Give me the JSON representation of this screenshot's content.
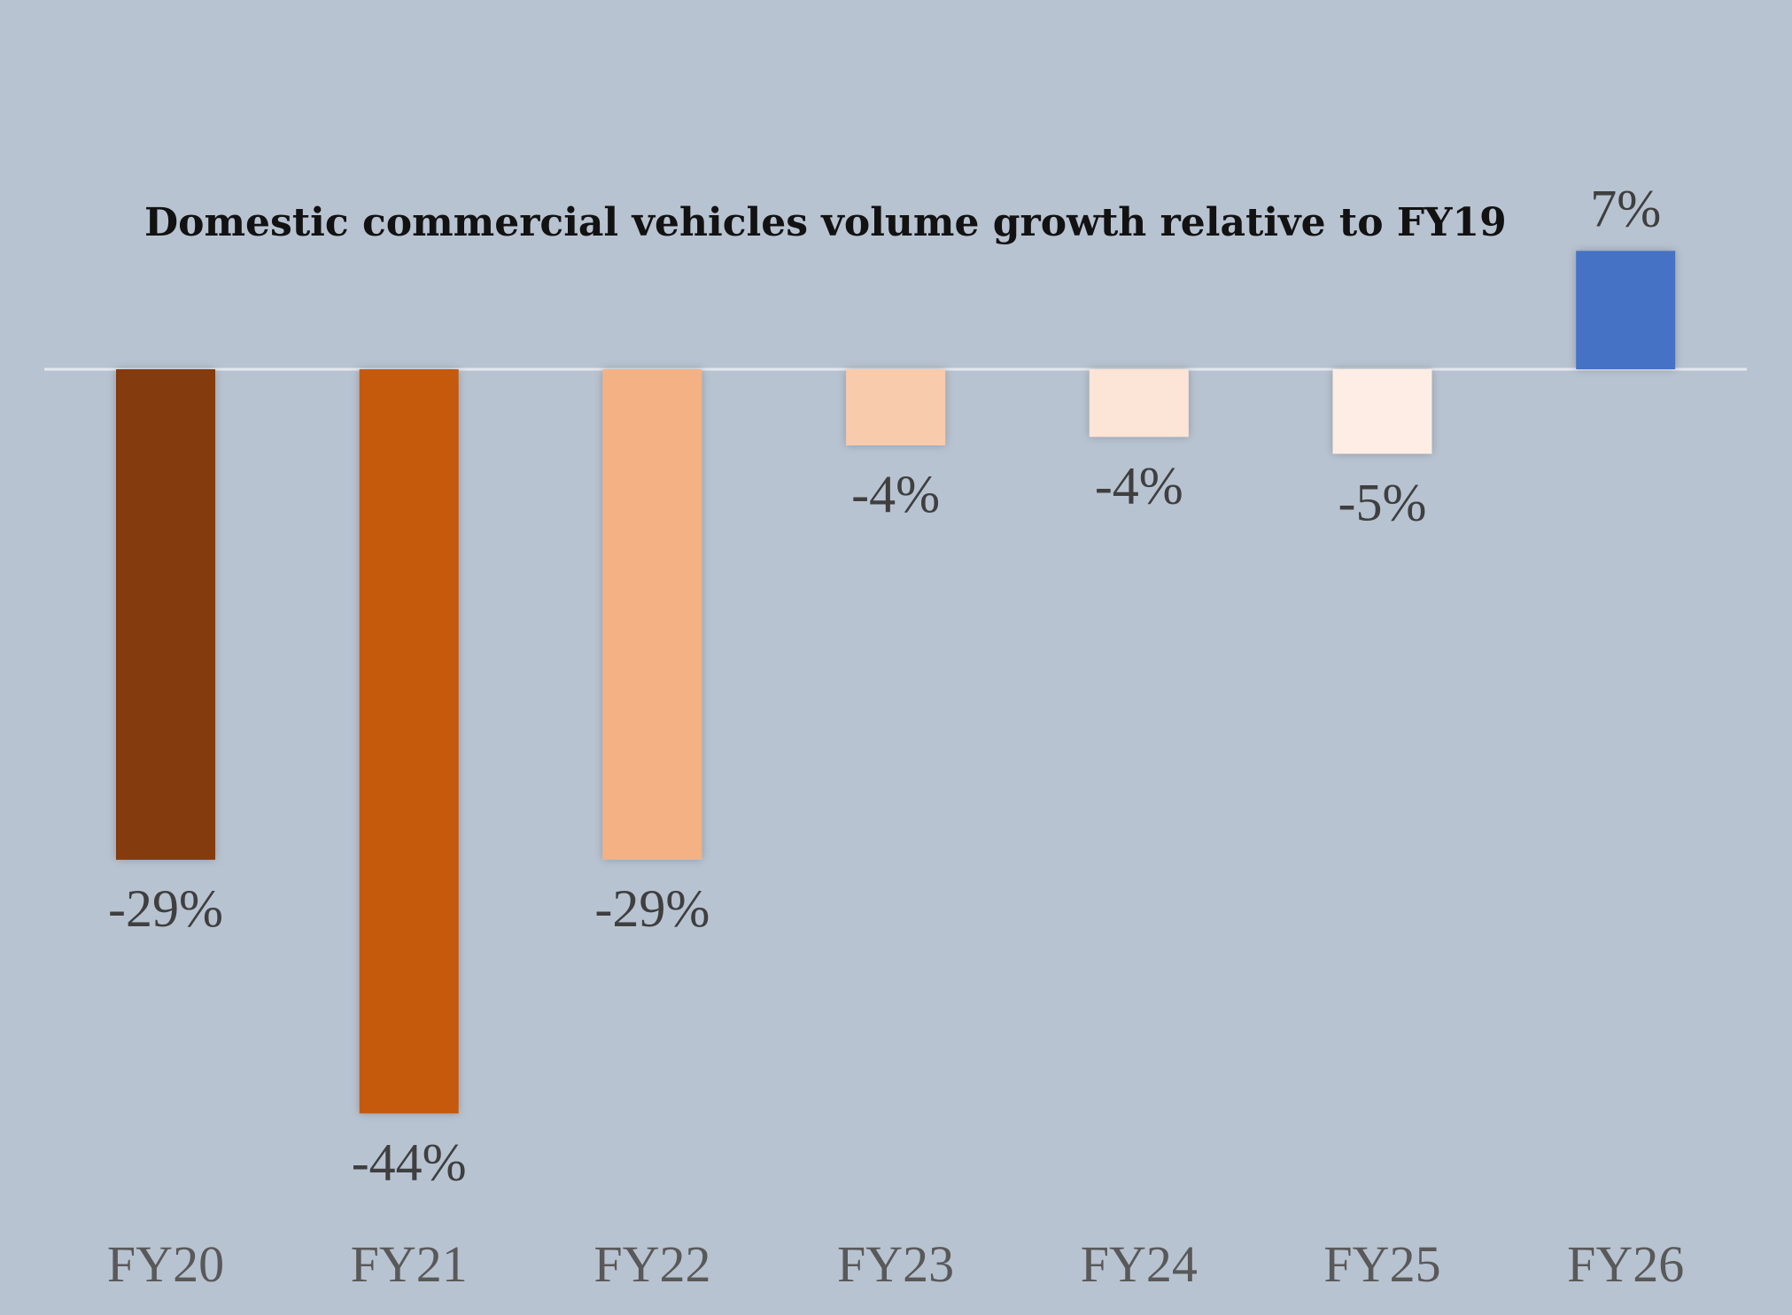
{
  "chart_data": {
    "type": "bar",
    "title": "Domestic commercial vehicles volume growth relative to FY19",
    "categories": [
      "FY20",
      "FY21",
      "FY22",
      "FY23",
      "FY24",
      "FY25",
      "FY26"
    ],
    "values": [
      -29,
      -44,
      -29,
      -4.5,
      -4,
      -5,
      7
    ],
    "value_labels": [
      "-29%",
      "-44%",
      "-29%",
      "-4%",
      "-4%",
      "-5%",
      "7%"
    ],
    "colors": [
      "#843a0c",
      "#c55a11",
      "#f4b183",
      "#f8cbad",
      "#fce4d6",
      "#fdede4",
      "#4472c4"
    ],
    "units": "%",
    "xlabel": "",
    "ylabel": "",
    "grid": false,
    "legend": "none"
  }
}
